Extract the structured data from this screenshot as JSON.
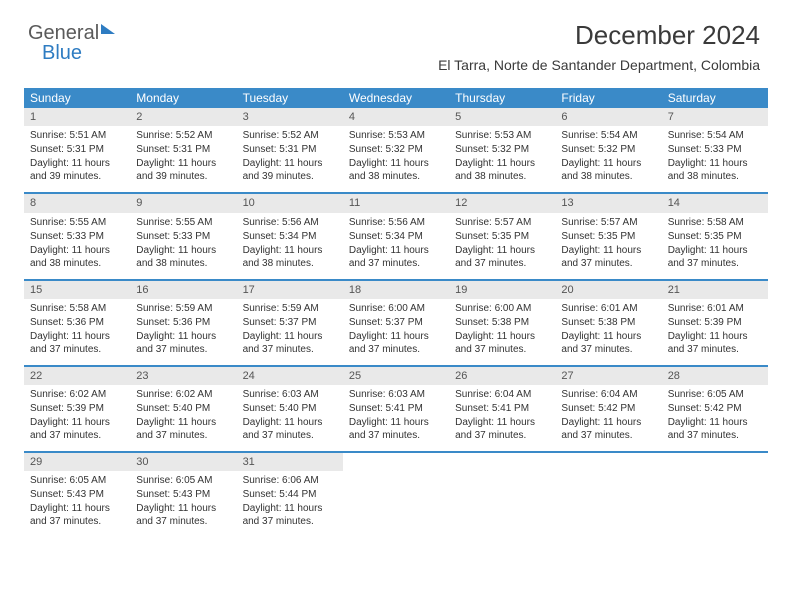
{
  "logo": {
    "part1": "General",
    "part2": "Blue"
  },
  "title": "December 2024",
  "location": "El Tarra, Norte de Santander Department, Colombia",
  "colors": {
    "header_bg": "#3a8ac8",
    "header_text": "#ffffff",
    "daynum_bg": "#e9e9e9",
    "border": "#3a8ac8",
    "text": "#333333"
  },
  "fonts": {
    "title_size": 26,
    "location_size": 14,
    "dow_size": 12,
    "body_size": 10
  },
  "days_of_week": [
    "Sunday",
    "Monday",
    "Tuesday",
    "Wednesday",
    "Thursday",
    "Friday",
    "Saturday"
  ],
  "labels": {
    "sunrise": "Sunrise:",
    "sunset": "Sunset:",
    "daylight": "Daylight:"
  },
  "weeks": [
    [
      {
        "n": 1,
        "sr": "5:51 AM",
        "ss": "5:31 PM",
        "dl": "11 hours and 39 minutes."
      },
      {
        "n": 2,
        "sr": "5:52 AM",
        "ss": "5:31 PM",
        "dl": "11 hours and 39 minutes."
      },
      {
        "n": 3,
        "sr": "5:52 AM",
        "ss": "5:31 PM",
        "dl": "11 hours and 39 minutes."
      },
      {
        "n": 4,
        "sr": "5:53 AM",
        "ss": "5:32 PM",
        "dl": "11 hours and 38 minutes."
      },
      {
        "n": 5,
        "sr": "5:53 AM",
        "ss": "5:32 PM",
        "dl": "11 hours and 38 minutes."
      },
      {
        "n": 6,
        "sr": "5:54 AM",
        "ss": "5:32 PM",
        "dl": "11 hours and 38 minutes."
      },
      {
        "n": 7,
        "sr": "5:54 AM",
        "ss": "5:33 PM",
        "dl": "11 hours and 38 minutes."
      }
    ],
    [
      {
        "n": 8,
        "sr": "5:55 AM",
        "ss": "5:33 PM",
        "dl": "11 hours and 38 minutes."
      },
      {
        "n": 9,
        "sr": "5:55 AM",
        "ss": "5:33 PM",
        "dl": "11 hours and 38 minutes."
      },
      {
        "n": 10,
        "sr": "5:56 AM",
        "ss": "5:34 PM",
        "dl": "11 hours and 38 minutes."
      },
      {
        "n": 11,
        "sr": "5:56 AM",
        "ss": "5:34 PM",
        "dl": "11 hours and 37 minutes."
      },
      {
        "n": 12,
        "sr": "5:57 AM",
        "ss": "5:35 PM",
        "dl": "11 hours and 37 minutes."
      },
      {
        "n": 13,
        "sr": "5:57 AM",
        "ss": "5:35 PM",
        "dl": "11 hours and 37 minutes."
      },
      {
        "n": 14,
        "sr": "5:58 AM",
        "ss": "5:35 PM",
        "dl": "11 hours and 37 minutes."
      }
    ],
    [
      {
        "n": 15,
        "sr": "5:58 AM",
        "ss": "5:36 PM",
        "dl": "11 hours and 37 minutes."
      },
      {
        "n": 16,
        "sr": "5:59 AM",
        "ss": "5:36 PM",
        "dl": "11 hours and 37 minutes."
      },
      {
        "n": 17,
        "sr": "5:59 AM",
        "ss": "5:37 PM",
        "dl": "11 hours and 37 minutes."
      },
      {
        "n": 18,
        "sr": "6:00 AM",
        "ss": "5:37 PM",
        "dl": "11 hours and 37 minutes."
      },
      {
        "n": 19,
        "sr": "6:00 AM",
        "ss": "5:38 PM",
        "dl": "11 hours and 37 minutes."
      },
      {
        "n": 20,
        "sr": "6:01 AM",
        "ss": "5:38 PM",
        "dl": "11 hours and 37 minutes."
      },
      {
        "n": 21,
        "sr": "6:01 AM",
        "ss": "5:39 PM",
        "dl": "11 hours and 37 minutes."
      }
    ],
    [
      {
        "n": 22,
        "sr": "6:02 AM",
        "ss": "5:39 PM",
        "dl": "11 hours and 37 minutes."
      },
      {
        "n": 23,
        "sr": "6:02 AM",
        "ss": "5:40 PM",
        "dl": "11 hours and 37 minutes."
      },
      {
        "n": 24,
        "sr": "6:03 AM",
        "ss": "5:40 PM",
        "dl": "11 hours and 37 minutes."
      },
      {
        "n": 25,
        "sr": "6:03 AM",
        "ss": "5:41 PM",
        "dl": "11 hours and 37 minutes."
      },
      {
        "n": 26,
        "sr": "6:04 AM",
        "ss": "5:41 PM",
        "dl": "11 hours and 37 minutes."
      },
      {
        "n": 27,
        "sr": "6:04 AM",
        "ss": "5:42 PM",
        "dl": "11 hours and 37 minutes."
      },
      {
        "n": 28,
        "sr": "6:05 AM",
        "ss": "5:42 PM",
        "dl": "11 hours and 37 minutes."
      }
    ],
    [
      {
        "n": 29,
        "sr": "6:05 AM",
        "ss": "5:43 PM",
        "dl": "11 hours and 37 minutes."
      },
      {
        "n": 30,
        "sr": "6:05 AM",
        "ss": "5:43 PM",
        "dl": "11 hours and 37 minutes."
      },
      {
        "n": 31,
        "sr": "6:06 AM",
        "ss": "5:44 PM",
        "dl": "11 hours and 37 minutes."
      },
      null,
      null,
      null,
      null
    ]
  ]
}
